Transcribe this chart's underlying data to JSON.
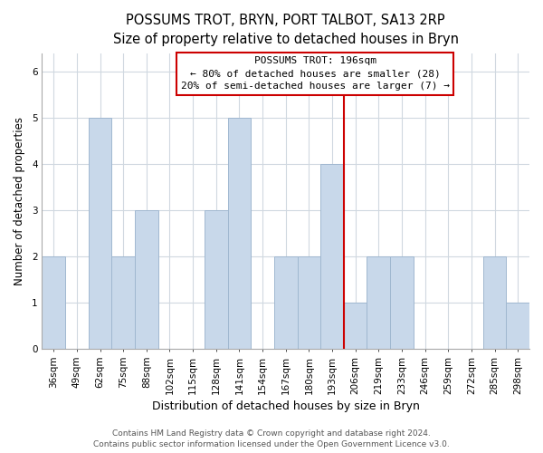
{
  "title": "POSSUMS TROT, BRYN, PORT TALBOT, SA13 2RP",
  "subtitle": "Size of property relative to detached houses in Bryn",
  "xlabel": "Distribution of detached houses by size in Bryn",
  "ylabel": "Number of detached properties",
  "bar_labels": [
    "36sqm",
    "49sqm",
    "62sqm",
    "75sqm",
    "88sqm",
    "102sqm",
    "115sqm",
    "128sqm",
    "141sqm",
    "154sqm",
    "167sqm",
    "180sqm",
    "193sqm",
    "206sqm",
    "219sqm",
    "233sqm",
    "246sqm",
    "259sqm",
    "272sqm",
    "285sqm",
    "298sqm"
  ],
  "bar_heights": [
    2,
    0,
    5,
    2,
    3,
    0,
    0,
    3,
    5,
    0,
    2,
    2,
    4,
    1,
    2,
    2,
    0,
    0,
    0,
    2,
    1
  ],
  "bar_color": "#c8d8ea",
  "bar_edge_color": "#a0b8d0",
  "grid_color": "#d0d8e0",
  "vline_color": "#cc0000",
  "annotation_title": "POSSUMS TROT: 196sqm",
  "annotation_line1": "← 80% of detached houses are smaller (28)",
  "annotation_line2": "20% of semi-detached houses are larger (7) →",
  "annotation_box_color": "#ffffff",
  "annotation_box_edge": "#cc0000",
  "ylim": [
    0,
    6.4
  ],
  "footer1": "Contains HM Land Registry data © Crown copyright and database right 2024.",
  "footer2": "Contains public sector information licensed under the Open Government Licence v3.0.",
  "title_fontsize": 10.5,
  "subtitle_fontsize": 9.5,
  "xlabel_fontsize": 9,
  "ylabel_fontsize": 8.5,
  "tick_fontsize": 7.5,
  "annot_fontsize": 8,
  "footer_fontsize": 6.5
}
